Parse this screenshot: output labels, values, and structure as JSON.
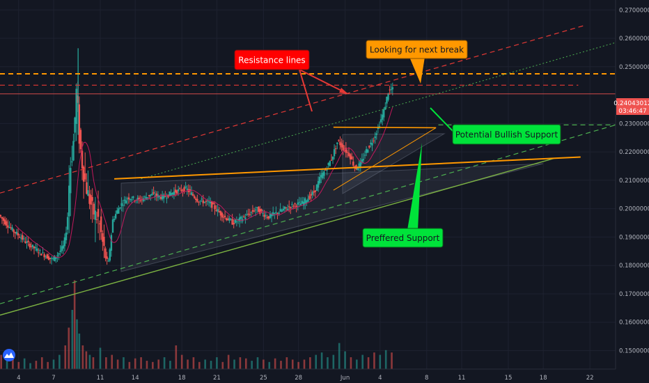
{
  "colors": {
    "background": "#131722",
    "grid": "#1e2230",
    "candle_up": "#26a69a",
    "candle_down": "#ef5350",
    "resistance": "#e53935",
    "orange": "#ff9800",
    "green_line": "#7cb342",
    "dashed_green": "#4caf50",
    "price_tag": "#ef5350",
    "ma_line": "#c2185b"
  },
  "logo_icon": "tradingview-mountain-icon",
  "price_tag": {
    "price": "0.24043012",
    "countdown": "03:46:47",
    "value": 0.24043012
  },
  "annotations": {
    "resistance": "Resistance lines",
    "next_break": "Looking for next break",
    "bullish_support": "Potential Bullish Support",
    "preferred_support": "Preffered Support"
  },
  "chart_data": {
    "type": "candlestick",
    "y_axis": {
      "min": 0.1435,
      "max": 0.2735,
      "ticks": [
        "0.27000000",
        "0.26000000",
        "0.25000000",
        "0.23000000",
        "0.22000000",
        "0.21000000",
        "0.20000000",
        "0.19000000",
        "0.18000000",
        "0.17000000",
        "0.16000000",
        "0.15000000"
      ],
      "tick_values": [
        0.27,
        0.26,
        0.25,
        0.23,
        0.22,
        0.21,
        0.2,
        0.19,
        0.18,
        0.17,
        0.16,
        0.15
      ]
    },
    "x_axis": {
      "ticks": [
        "4",
        "7",
        "11",
        "14",
        "18",
        "21",
        "25",
        "28",
        "Jun",
        "4",
        "8",
        "11",
        "15",
        "18",
        "22"
      ],
      "tick_day_index": [
        0,
        3,
        7,
        10,
        14,
        17,
        21,
        24,
        28,
        31,
        35,
        38,
        42,
        45,
        49
      ]
    },
    "day_range": [
      -1.6,
      51.2
    ],
    "price_path": [
      [
        -1.6,
        0.198
      ],
      [
        -1.0,
        0.195
      ],
      [
        -0.3,
        0.192
      ],
      [
        0.3,
        0.19
      ],
      [
        0.8,
        0.188
      ],
      [
        1.5,
        0.186
      ],
      [
        2.2,
        0.184
      ],
      [
        3.0,
        0.182
      ],
      [
        3.5,
        0.184
      ],
      [
        4.0,
        0.187
      ],
      [
        4.3,
        0.195
      ],
      [
        4.5,
        0.213
      ],
      [
        4.8,
        0.222
      ],
      [
        4.95,
        0.232
      ],
      [
        5.1,
        0.243
      ],
      [
        5.3,
        0.226
      ],
      [
        5.6,
        0.215
      ],
      [
        6.0,
        0.206
      ],
      [
        6.5,
        0.199
      ],
      [
        7.0,
        0.196
      ],
      [
        7.4,
        0.186
      ],
      [
        7.8,
        0.18
      ],
      [
        8.2,
        0.196
      ],
      [
        8.8,
        0.201
      ],
      [
        9.5,
        0.204
      ],
      [
        10.5,
        0.203
      ],
      [
        11.5,
        0.205
      ],
      [
        12.5,
        0.204
      ],
      [
        13.5,
        0.206
      ],
      [
        14.5,
        0.207
      ],
      [
        15.5,
        0.203
      ],
      [
        16.5,
        0.202
      ],
      [
        17.5,
        0.198
      ],
      [
        18.5,
        0.195
      ],
      [
        19.5,
        0.197
      ],
      [
        20.5,
        0.2
      ],
      [
        21.5,
        0.197
      ],
      [
        22.5,
        0.199
      ],
      [
        23.5,
        0.201
      ],
      [
        24.5,
        0.202
      ],
      [
        25.5,
        0.206
      ],
      [
        26.0,
        0.211
      ],
      [
        26.5,
        0.214
      ],
      [
        27.0,
        0.218
      ],
      [
        27.5,
        0.224
      ],
      [
        28.0,
        0.221
      ],
      [
        28.5,
        0.219
      ],
      [
        29.0,
        0.214
      ],
      [
        29.5,
        0.216
      ],
      [
        30.0,
        0.221
      ],
      [
        30.5,
        0.224
      ],
      [
        31.0,
        0.229
      ],
      [
        31.5,
        0.235
      ],
      [
        31.8,
        0.241
      ],
      [
        32.1,
        0.242
      ]
    ],
    "volume": [
      [
        -1.5,
        0.12
      ],
      [
        -1.0,
        0.08
      ],
      [
        -0.5,
        0.1
      ],
      [
        0,
        0.06
      ],
      [
        0.5,
        0.09
      ],
      [
        1.0,
        0.05
      ],
      [
        1.5,
        0.07
      ],
      [
        2.0,
        0.1
      ],
      [
        2.5,
        0.06
      ],
      [
        3.0,
        0.08
      ],
      [
        3.5,
        0.12
      ],
      [
        4.0,
        0.2
      ],
      [
        4.3,
        0.35
      ],
      [
        4.6,
        0.5
      ],
      [
        4.8,
        0.75
      ],
      [
        5.0,
        0.42
      ],
      [
        5.2,
        0.3
      ],
      [
        5.5,
        0.2
      ],
      [
        5.8,
        0.15
      ],
      [
        6.1,
        0.12
      ],
      [
        6.4,
        0.1
      ],
      [
        7.0,
        0.18
      ],
      [
        7.5,
        0.1
      ],
      [
        8.0,
        0.12
      ],
      [
        8.5,
        0.08
      ],
      [
        9.0,
        0.1
      ],
      [
        9.5,
        0.06
      ],
      [
        10.0,
        0.09
      ],
      [
        10.5,
        0.1
      ],
      [
        11.0,
        0.07
      ],
      [
        11.5,
        0.06
      ],
      [
        12.0,
        0.08
      ],
      [
        12.5,
        0.1
      ],
      [
        13.0,
        0.07
      ],
      [
        13.5,
        0.2
      ],
      [
        14.0,
        0.12
      ],
      [
        14.5,
        0.08
      ],
      [
        15.0,
        0.1
      ],
      [
        15.5,
        0.06
      ],
      [
        16.0,
        0.08
      ],
      [
        16.5,
        0.07
      ],
      [
        17.0,
        0.1
      ],
      [
        17.5,
        0.06
      ],
      [
        18.0,
        0.12
      ],
      [
        18.5,
        0.08
      ],
      [
        19.0,
        0.1
      ],
      [
        19.5,
        0.09
      ],
      [
        20.0,
        0.07
      ],
      [
        20.5,
        0.1
      ],
      [
        21.0,
        0.08
      ],
      [
        21.5,
        0.06
      ],
      [
        22.0,
        0.09
      ],
      [
        22.5,
        0.07
      ],
      [
        23.0,
        0.1
      ],
      [
        23.5,
        0.08
      ],
      [
        24.0,
        0.06
      ],
      [
        24.5,
        0.08
      ],
      [
        25.0,
        0.1
      ],
      [
        25.5,
        0.12
      ],
      [
        26.0,
        0.14
      ],
      [
        26.5,
        0.1
      ],
      [
        27.0,
        0.12
      ],
      [
        27.5,
        0.22
      ],
      [
        28.0,
        0.15
      ],
      [
        28.5,
        0.1
      ],
      [
        29.0,
        0.08
      ],
      [
        29.5,
        0.12
      ],
      [
        30.0,
        0.1
      ],
      [
        30.5,
        0.14
      ],
      [
        31.0,
        0.12
      ],
      [
        31.5,
        0.16
      ],
      [
        32.0,
        0.14
      ]
    ],
    "lines": [
      {
        "id": "resistance-diagonal",
        "color": "#e53935",
        "style": "dashed",
        "width": 1.2,
        "points": [
          [
            -1.6,
            0.2055
          ],
          [
            48.5,
            0.2645
          ]
        ]
      },
      {
        "id": "resistance-horizontal",
        "color": "#e53935",
        "style": "dashed",
        "width": 1.2,
        "points": [
          [
            -1.6,
            0.2435
          ],
          [
            48.0,
            0.2435
          ]
        ]
      },
      {
        "id": "next-break-horizontal",
        "color": "#ff9800",
        "style": "dashed",
        "width": 2,
        "points": [
          [
            -1.6,
            0.2475
          ],
          [
            51.2,
            0.2475
          ]
        ]
      },
      {
        "id": "current-price-line",
        "color": "#ef5350",
        "style": "solid",
        "width": 0.8,
        "points": [
          [
            -1.6,
            0.24043
          ],
          [
            51.2,
            0.24043
          ]
        ]
      },
      {
        "id": "dotted-green-diagonal",
        "color": "#4caf50",
        "style": "dotted",
        "width": 1,
        "points": [
          [
            10.5,
            0.2105
          ],
          [
            51.2,
            0.2585
          ]
        ]
      },
      {
        "id": "dashed-green-diagonal",
        "color": "#4caf50",
        "style": "dashed",
        "width": 1.2,
        "points": [
          [
            -1.6,
            0.1665
          ],
          [
            51.2,
            0.2295
          ]
        ]
      },
      {
        "id": "bullish-support-horizontal",
        "color": "#4caf50",
        "style": "dashed",
        "width": 1.2,
        "points": [
          [
            36.0,
            0.2295
          ],
          [
            51.2,
            0.2295
          ]
        ]
      },
      {
        "id": "green-trendline",
        "color": "#7cb342",
        "style": "solid",
        "width": 1.4,
        "points": [
          [
            -1.6,
            0.1625
          ],
          [
            46.0,
            0.2178
          ]
        ]
      },
      {
        "id": "orange-upper-line",
        "color": "#ff9800",
        "style": "solid",
        "width": 2,
        "points": [
          [
            8.2,
            0.2105
          ],
          [
            48.2,
            0.2182
          ]
        ]
      },
      {
        "id": "orange-flag-upper",
        "color": "#ff9800",
        "style": "solid",
        "width": 1.6,
        "points": [
          [
            27.0,
            0.2287
          ],
          [
            35.8,
            0.2285
          ]
        ]
      },
      {
        "id": "orange-flag-lower",
        "color": "#ff9800",
        "style": "solid",
        "width": 1,
        "points": [
          [
            27.0,
            0.2065
          ],
          [
            35.8,
            0.2285
          ]
        ]
      }
    ]
  }
}
